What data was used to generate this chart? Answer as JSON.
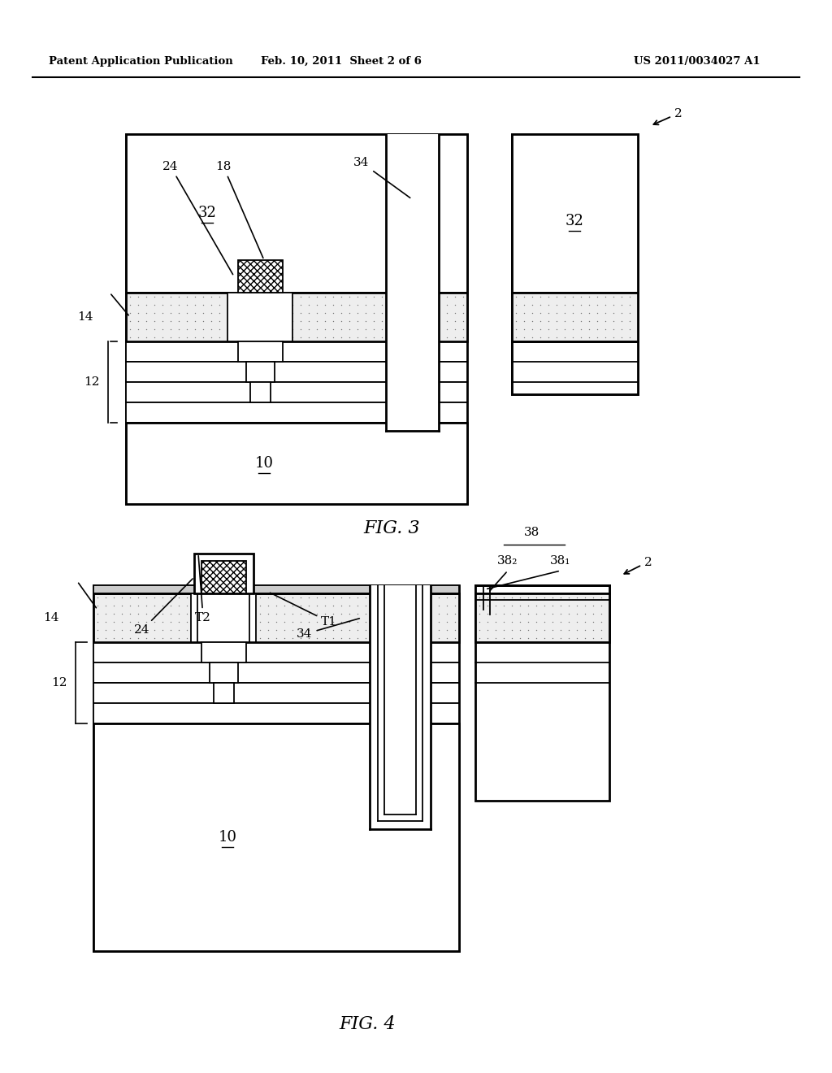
{
  "header_left": "Patent Application Publication",
  "header_mid": "Feb. 10, 2011  Sheet 2 of 6",
  "header_right": "US 2011/0034027 A1",
  "fig3_label": "FIG. 3",
  "fig4_label": "FIG. 4",
  "bg_color": "#ffffff",
  "lw_main": 2.0,
  "lw_thin": 1.3,
  "lw_coat": 1.8
}
